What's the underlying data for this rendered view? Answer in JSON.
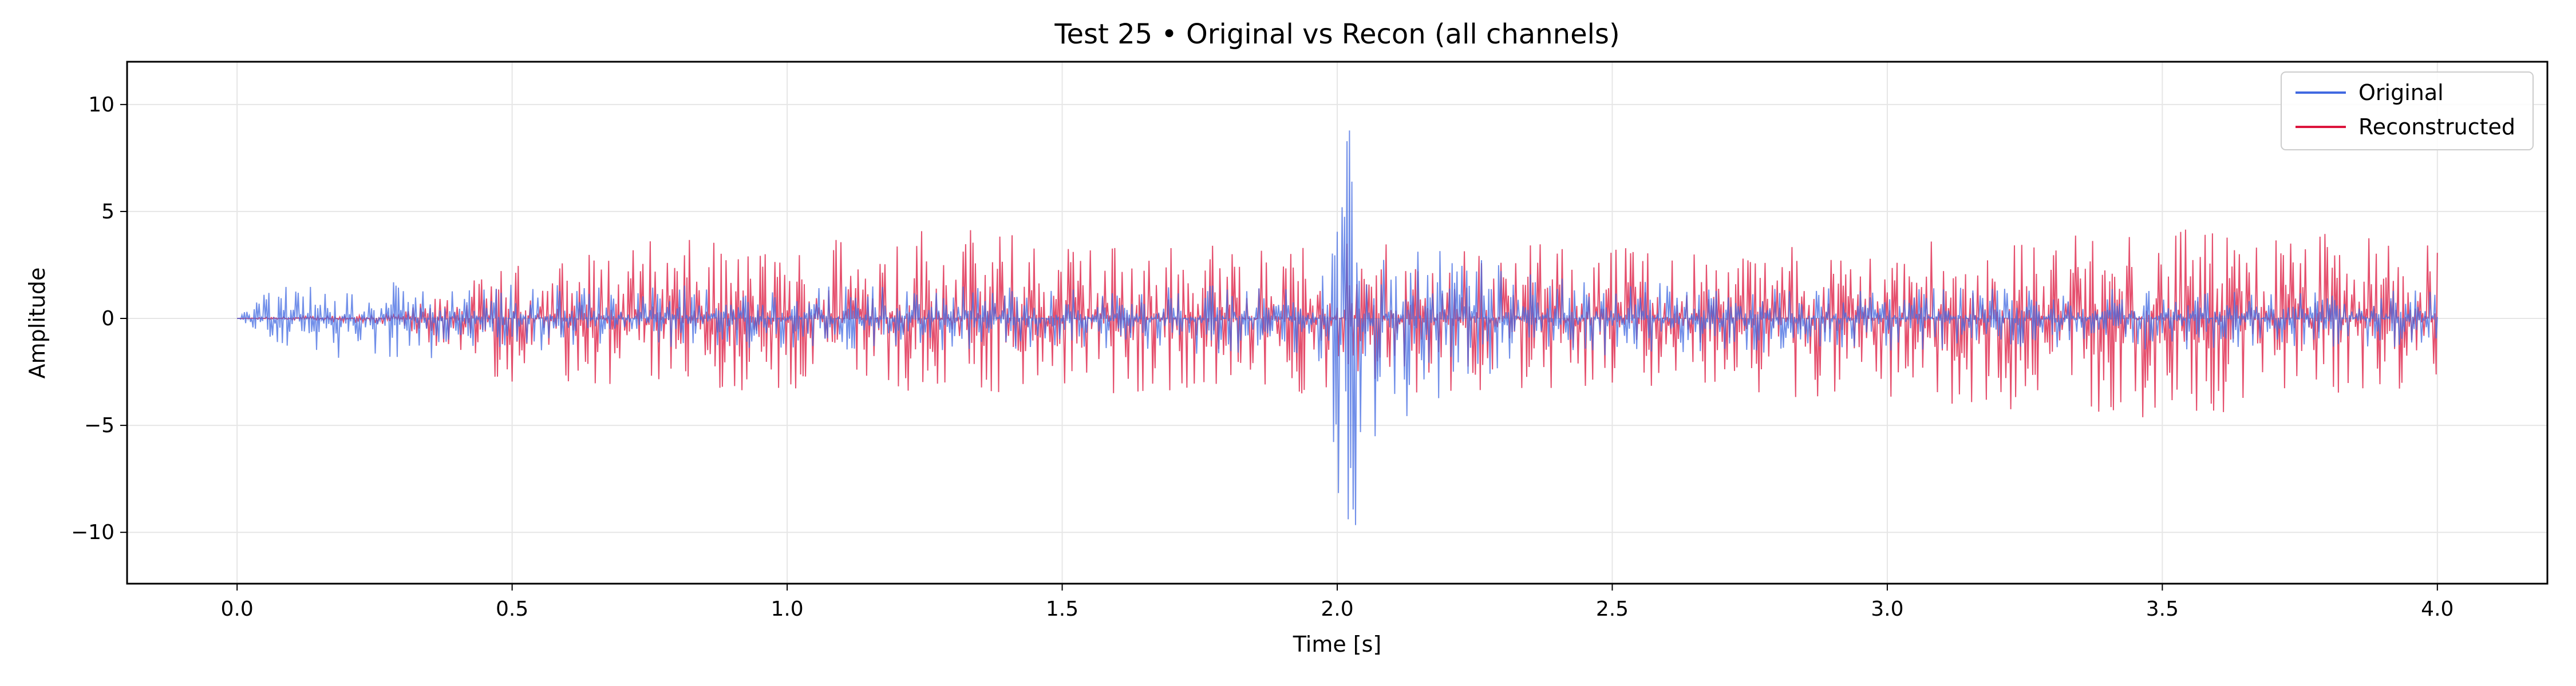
{
  "chart_data": {
    "type": "line",
    "title": "Test 25 • Original vs Recon (all channels)",
    "xlabel": "Time [s]",
    "ylabel": "Amplitude",
    "xlim": [
      -0.2,
      4.2
    ],
    "ylim": [
      -12.4,
      12.0
    ],
    "xticks": [
      0.0,
      0.5,
      1.0,
      1.5,
      2.0,
      2.5,
      3.0,
      3.5,
      4.0
    ],
    "xtick_labels": [
      "0.0",
      "0.5",
      "1.0",
      "1.5",
      "2.0",
      "2.5",
      "3.0",
      "3.5",
      "4.0"
    ],
    "yticks": [
      -10,
      -5,
      0,
      5,
      10
    ],
    "ytick_labels": [
      "−10",
      "−5",
      "0",
      "5",
      "10"
    ],
    "grid": true,
    "legend_position": "top-right",
    "colors": {
      "original": "#4169e1",
      "reconstructed": "#dc143c"
    },
    "series": [
      {
        "name": "Original",
        "color": "#4169e1",
        "x_start": 0.0,
        "x_end": 4.0,
        "envelope_t": [
          0.0,
          0.05,
          0.1,
          0.2,
          0.3,
          0.4,
          0.5,
          0.6,
          1.0,
          1.5,
          1.95,
          1.99,
          2.0,
          2.02,
          2.05,
          2.1,
          2.2,
          2.3,
          2.5,
          3.0,
          3.5,
          4.0
        ],
        "envelope_max": [
          0.0,
          1.2,
          1.7,
          1.3,
          1.8,
          1.4,
          1.8,
          1.6,
          1.5,
          1.5,
          1.6,
          4.0,
          10.5,
          10.9,
          7.5,
          4.5,
          3.5,
          2.5,
          1.8,
          1.5,
          1.5,
          1.3
        ],
        "envelope_min": [
          0.0,
          -0.8,
          -1.5,
          -2.0,
          -2.5,
          -1.5,
          -1.5,
          -1.5,
          -1.5,
          -1.5,
          -1.8,
          -6.0,
          -10.0,
          -11.3,
          -8.0,
          -5.0,
          -3.5,
          -2.5,
          -1.8,
          -1.5,
          -1.5,
          -1.3
        ]
      },
      {
        "name": "Reconstructed",
        "color": "#dc143c",
        "x_start": 0.0,
        "x_end": 4.0,
        "envelope_t": [
          0.0,
          0.3,
          0.4,
          0.5,
          0.75,
          1.0,
          1.17,
          1.5,
          2.0,
          2.5,
          3.0,
          3.5,
          4.0
        ],
        "envelope_max": [
          0.0,
          0.3,
          1.5,
          2.5,
          3.8,
          3.4,
          5.0,
          3.8,
          3.5,
          3.5,
          3.5,
          4.2,
          4.1
        ],
        "envelope_min": [
          0.0,
          -0.3,
          -2.5,
          -3.0,
          -3.5,
          -3.5,
          -3.5,
          -3.8,
          -3.5,
          -3.5,
          -3.8,
          -4.8,
          -3.1
        ]
      }
    ]
  }
}
